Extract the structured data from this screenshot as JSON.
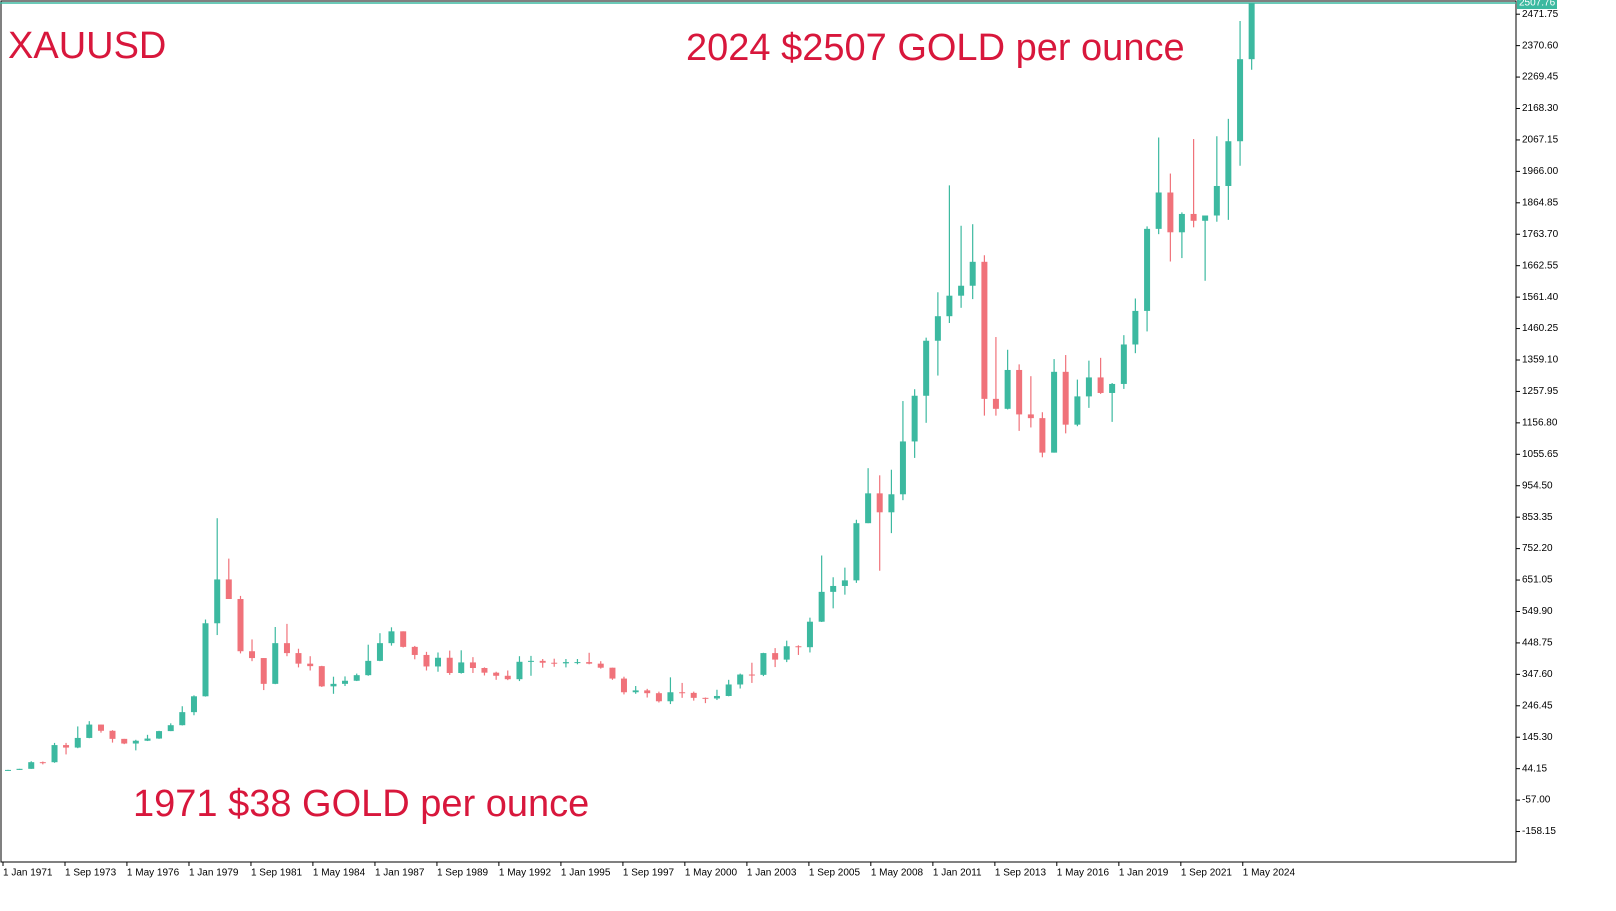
{
  "chart_data": {
    "type": "candlestick",
    "title": "XAUUSD",
    "annotations": [
      "2024 $2507 GOLD per ounce",
      "1971 $38 GOLD per ounce"
    ],
    "up_color": "#3cb9a0",
    "down_color": "#f0727a",
    "price_line_color": "#3cb9a0",
    "current_price": 2507.76,
    "xlim": [
      "1971-01-01",
      "2036-02-01"
    ],
    "ylim": [
      -256.2,
      2514.2
    ],
    "yticks": [
      2471.75,
      {
        "value": 2370.6,
        "label": "2370.60"
      },
      2269.45,
      {
        "value": 2168.3,
        "label": "2168.30"
      },
      2067.15,
      {
        "value": 1966,
        "label": "1966.00"
      },
      1864.85,
      {
        "value": 1763.7,
        "label": "1763.70"
      },
      1662.55,
      {
        "value": 1561.4,
        "label": "1561.40"
      },
      1460.25,
      {
        "value": 1359.1,
        "label": "1359.10"
      },
      1257.95,
      {
        "value": 1156.8,
        "label": "1156.80"
      },
      1055.65,
      {
        "value": 954.5,
        "label": "954.50"
      },
      853.35,
      {
        "value": 752.2,
        "label": "752.20"
      },
      651.05,
      {
        "value": 549.9,
        "label": "549.90"
      },
      448.75,
      {
        "value": 347.6,
        "label": "347.60"
      },
      246.45,
      {
        "value": 145.3,
        "label": "145.30"
      },
      44.15,
      {
        "value": -57,
        "label": "-57.00"
      },
      -158.15
    ],
    "xticks": [
      {
        "value": "1971-01-01",
        "label": "1 Jan 1971"
      },
      {
        "value": "1973-09-01",
        "label": "1 Sep 1973"
      },
      {
        "value": "1976-05-01",
        "label": "1 May 1976"
      },
      {
        "value": "1979-01-01",
        "label": "1 Jan 1979"
      },
      {
        "value": "1981-09-01",
        "label": "1 Sep 1981"
      },
      {
        "value": "1984-05-01",
        "label": "1 May 1984"
      },
      {
        "value": "1987-01-01",
        "label": "1 Jan 1987"
      },
      {
        "value": "1989-09-01",
        "label": "1 Sep 1989"
      },
      {
        "value": "1992-05-01",
        "label": "1 May 1992"
      },
      {
        "value": "1995-01-01",
        "label": "1 Jan 1995"
      },
      {
        "value": "1997-09-01",
        "label": "1 Sep 1997"
      },
      {
        "value": "2000-05-01",
        "label": "1 May 2000"
      },
      {
        "value": "2003-01-01",
        "label": "1 Jan 2003"
      },
      {
        "value": "2005-09-01",
        "label": "1 Sep 2005"
      },
      {
        "value": "2008-05-01",
        "label": "1 May 2008"
      },
      {
        "value": "2011-01-01",
        "label": "1 Jan 2011"
      },
      {
        "value": "2013-09-01",
        "label": "1 Sep 2013"
      },
      {
        "value": "2016-05-01",
        "label": "1 May 2016"
      },
      {
        "value": "2019-01-01",
        "label": "1 Jan 2019"
      },
      {
        "value": "2021-09-01",
        "label": "1 Sep 2021"
      },
      {
        "value": "2024-05-01",
        "label": "1 May 2024"
      }
    ],
    "x": [
      "1971-01-01",
      "1971-07-01",
      "1972-01-01",
      "1972-07-01",
      "1973-01-01",
      "1973-07-01",
      "1974-01-01",
      "1974-07-01",
      "1975-01-01",
      "1975-07-01",
      "1976-01-01",
      "1976-07-01",
      "1977-01-01",
      "1977-07-01",
      "1978-01-01",
      "1978-07-01",
      "1979-01-01",
      "1979-07-01",
      "1980-01-01",
      "1980-07-01",
      "1981-01-01",
      "1981-07-01",
      "1982-01-01",
      "1982-07-01",
      "1983-01-01",
      "1983-07-01",
      "1984-01-01",
      "1984-07-01",
      "1985-01-01",
      "1985-07-01",
      "1986-01-01",
      "1986-07-01",
      "1987-01-01",
      "1987-07-01",
      "1988-01-01",
      "1988-07-01",
      "1989-01-01",
      "1989-07-01",
      "1990-01-01",
      "1990-07-01",
      "1991-01-01",
      "1991-07-01",
      "1992-01-01",
      "1992-07-01",
      "1993-01-01",
      "1993-07-01",
      "1994-01-01",
      "1994-07-01",
      "1995-01-01",
      "1995-07-01",
      "1996-01-01",
      "1996-07-01",
      "1997-01-01",
      "1997-07-01",
      "1998-01-01",
      "1998-07-01",
      "1999-01-01",
      "1999-07-01",
      "2000-01-01",
      "2000-07-01",
      "2001-01-01",
      "2001-07-01",
      "2002-01-01",
      "2002-07-01",
      "2003-01-01",
      "2003-07-01",
      "2004-01-01",
      "2004-07-01",
      "2005-01-01",
      "2005-07-01",
      "2006-01-01",
      "2006-07-01",
      "2007-01-01",
      "2007-07-01",
      "2008-01-01",
      "2008-07-01",
      "2009-01-01",
      "2009-07-01",
      "2010-01-01",
      "2010-07-01",
      "2011-01-01",
      "2011-07-01",
      "2012-01-01",
      "2012-07-01",
      "2013-01-01",
      "2013-07-01",
      "2014-01-01",
      "2014-07-01",
      "2015-01-01",
      "2015-07-01",
      "2016-01-01",
      "2016-07-01",
      "2017-01-01",
      "2017-07-01",
      "2018-01-01",
      "2018-07-01",
      "2019-01-01",
      "2019-07-01",
      "2020-01-01",
      "2020-07-01",
      "2021-01-01",
      "2021-07-01",
      "2022-01-01",
      "2022-07-01",
      "2023-01-01",
      "2023-07-01",
      "2024-01-01",
      "2024-07-01"
    ],
    "open": [
      37.4,
      40.1,
      43.6,
      65,
      64.9,
      120,
      112,
      143,
      186,
      166,
      140,
      125,
      134,
      141,
      165,
      184,
      226,
      277,
      512,
      653,
      590,
      422,
      400,
      317,
      448,
      416,
      382,
      374,
      309,
      317,
      327,
      345,
      391,
      448,
      486,
      436,
      410,
      373,
      401,
      352,
      386,
      368,
      353,
      343,
      332,
      388,
      391,
      385,
      383,
      387,
      387,
      382,
      369,
      334,
      290,
      296,
      287,
      261,
      290,
      288,
      272,
      270,
      278,
      315,
      347,
      346,
      416,
      395,
      438,
      435,
      517,
      613,
      632,
      650,
      834,
      930,
      869,
      927,
      1097,
      1244,
      1421,
      1500,
      1566,
      1598,
      1675,
      1234,
      1202,
      1327,
      1184,
      1172,
      1061,
      1321,
      1151,
      1242,
      1303,
      1253,
      1282,
      1409,
      1517,
      1781,
      1898,
      1770,
      1829,
      1807,
      1824,
      1919,
      2063,
      2327
    ],
    "high": [
      40.5,
      43.6,
      68,
      67,
      127,
      127,
      180,
      197,
      186,
      168,
      140,
      137,
      153,
      166,
      190,
      245,
      280,
      524,
      850,
      720,
      600,
      460,
      400,
      500,
      510,
      430,
      406,
      375,
      340,
      341,
      350,
      443,
      480,
      499,
      486,
      439,
      420,
      418,
      424,
      425,
      403,
      370,
      356,
      360,
      406,
      407,
      397,
      398,
      397,
      397,
      417,
      390,
      369,
      340,
      310,
      301,
      292,
      338,
      320,
      292,
      273,
      298,
      330,
      350,
      385,
      417,
      432,
      456,
      441,
      530,
      730,
      660,
      691,
      845,
      1011,
      988,
      1006,
      1227,
      1265,
      1431,
      1577,
      1921,
      1791,
      1796,
      1696,
      1433,
      1392,
      1345,
      1307,
      1191,
      1362,
      1375,
      1296,
      1357,
      1366,
      1285,
      1439,
      1557,
      1789,
      2075,
      1959,
      1834,
      2070,
      1814,
      2079,
      2135,
      2450,
      2509
    ],
    "low": [
      37.3,
      40,
      43.5,
      58,
      63,
      90,
      110,
      142,
      160,
      128,
      123,
      103,
      133,
      140,
      165,
      183,
      216,
      276,
      474,
      595,
      415,
      390,
      297,
      316,
      406,
      370,
      360,
      307,
      285,
      310,
      326,
      343,
      390,
      440,
      434,
      396,
      360,
      356,
      346,
      350,
      352,
      344,
      330,
      329,
      326,
      343,
      369,
      372,
      370,
      380,
      380,
      366,
      330,
      283,
      285,
      273,
      257,
      252,
      272,
      263,
      255,
      265,
      277,
      302,
      320,
      342,
      371,
      387,
      410,
      418,
      516,
      560,
      604,
      642,
      834,
      681,
      802,
      908,
      1044,
      1157,
      1309,
      1478,
      1527,
      1555,
      1180,
      1180,
      1200,
      1131,
      1142,
      1046,
      1061,
      1123,
      1146,
      1205,
      1250,
      1160,
      1266,
      1381,
      1451,
      1764,
      1676,
      1687,
      1786,
      1614,
      1804,
      1810,
      1984,
      2293
    ],
    "close": [
      40.1,
      43.6,
      65,
      64.9,
      120,
      112,
      143,
      186,
      166,
      140,
      125,
      134,
      141,
      165,
      184,
      226,
      277,
      512,
      653,
      590,
      422,
      400,
      317,
      448,
      416,
      382,
      374,
      309,
      317,
      327,
      345,
      391,
      448,
      486,
      436,
      410,
      373,
      401,
      352,
      386,
      368,
      353,
      343,
      332,
      388,
      391,
      385,
      383,
      387,
      387,
      382,
      369,
      334,
      290,
      296,
      287,
      261,
      290,
      288,
      272,
      270,
      278,
      315,
      347,
      346,
      416,
      395,
      438,
      435,
      517,
      613,
      632,
      650,
      834,
      930,
      869,
      927,
      1097,
      1244,
      1421,
      1500,
      1566,
      1598,
      1675,
      1234,
      1202,
      1327,
      1184,
      1172,
      1061,
      1321,
      1151,
      1242,
      1303,
      1253,
      1282,
      1409,
      1517,
      1781,
      1898,
      1770,
      1829,
      1807,
      1824,
      1919,
      2063,
      2327,
      2507.76
    ]
  }
}
